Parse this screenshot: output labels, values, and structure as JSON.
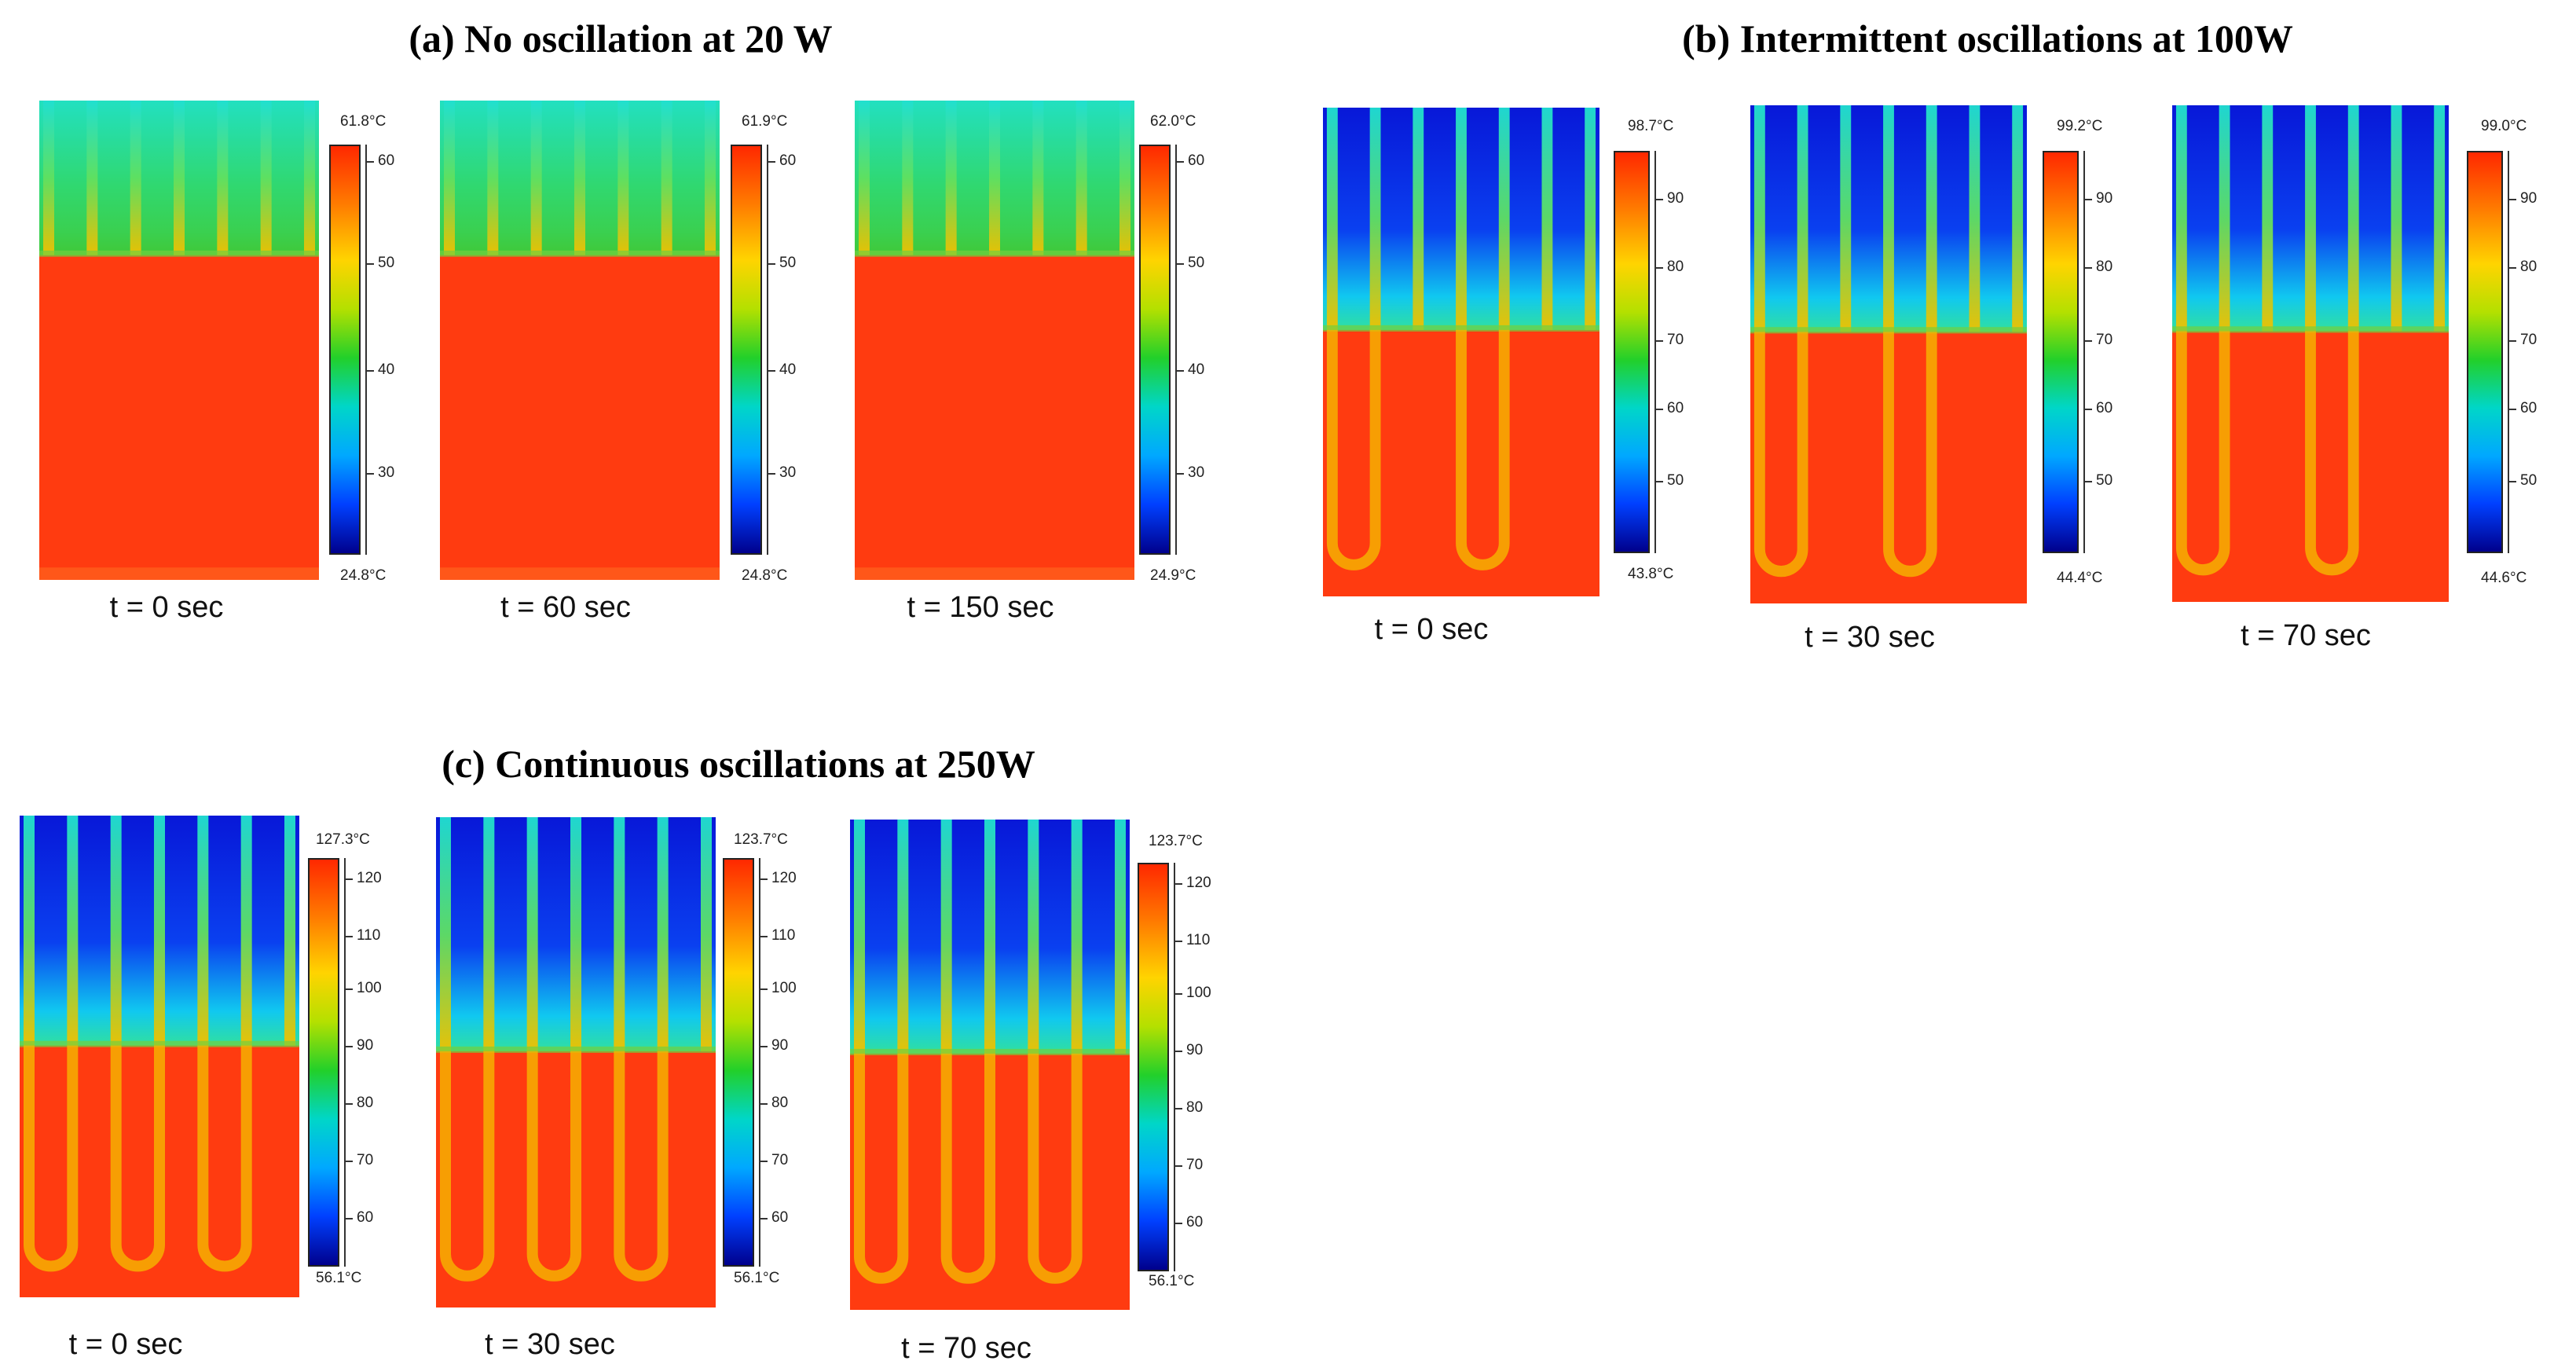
{
  "panels": [
    {
      "title": "(a) No oscillation at 20 W",
      "frames": [
        {
          "time": "t = 0 sec",
          "max": "61.8°C",
          "min": "24.8°C",
          "ticks": [
            "60",
            "50",
            "40",
            "30"
          ]
        },
        {
          "time": "t = 60 sec",
          "max": "61.9°C",
          "min": "24.8°C",
          "ticks": [
            "60",
            "50",
            "40",
            "30"
          ]
        },
        {
          "time": "t = 150 sec",
          "max": "62.0°C",
          "min": "24.9°C",
          "ticks": [
            "60",
            "50",
            "40",
            "30"
          ]
        }
      ]
    },
    {
      "title": "(b) Intermittent oscillations at 100W",
      "frames": [
        {
          "time": "t = 0 sec",
          "max": "98.7°C",
          "min": "43.8°C",
          "ticks": [
            "90",
            "80",
            "70",
            "60",
            "50"
          ]
        },
        {
          "time": "t = 30 sec",
          "max": "99.2°C",
          "min": "44.4°C",
          "ticks": [
            "90",
            "80",
            "70",
            "60",
            "50"
          ]
        },
        {
          "time": "t = 70 sec",
          "max": "99.0°C",
          "min": "44.6°C",
          "ticks": [
            "90",
            "80",
            "70",
            "60",
            "50"
          ]
        }
      ]
    },
    {
      "title": "(c) Continuous oscillations at 250W",
      "frames": [
        {
          "time": "t = 0 sec",
          "max": "127.3°C",
          "min": "56.1°C",
          "ticks": [
            "120",
            "110",
            "100",
            "90",
            "80",
            "70",
            "60"
          ]
        },
        {
          "time": "t = 30 sec",
          "max": "123.7°C",
          "min": "56.1°C",
          "ticks": [
            "120",
            "110",
            "100",
            "90",
            "80",
            "70",
            "60"
          ]
        },
        {
          "time": "t = 70 sec",
          "max": "123.7°C",
          "min": "56.1°C",
          "ticks": [
            "120",
            "110",
            "100",
            "90",
            "80",
            "70",
            "60"
          ]
        }
      ]
    }
  ],
  "colors": {
    "hot": "#ff3b10",
    "warm_tube": "#f5b800",
    "cold_a": "#1fd8a8",
    "cold_bc": "#0a22e0"
  }
}
